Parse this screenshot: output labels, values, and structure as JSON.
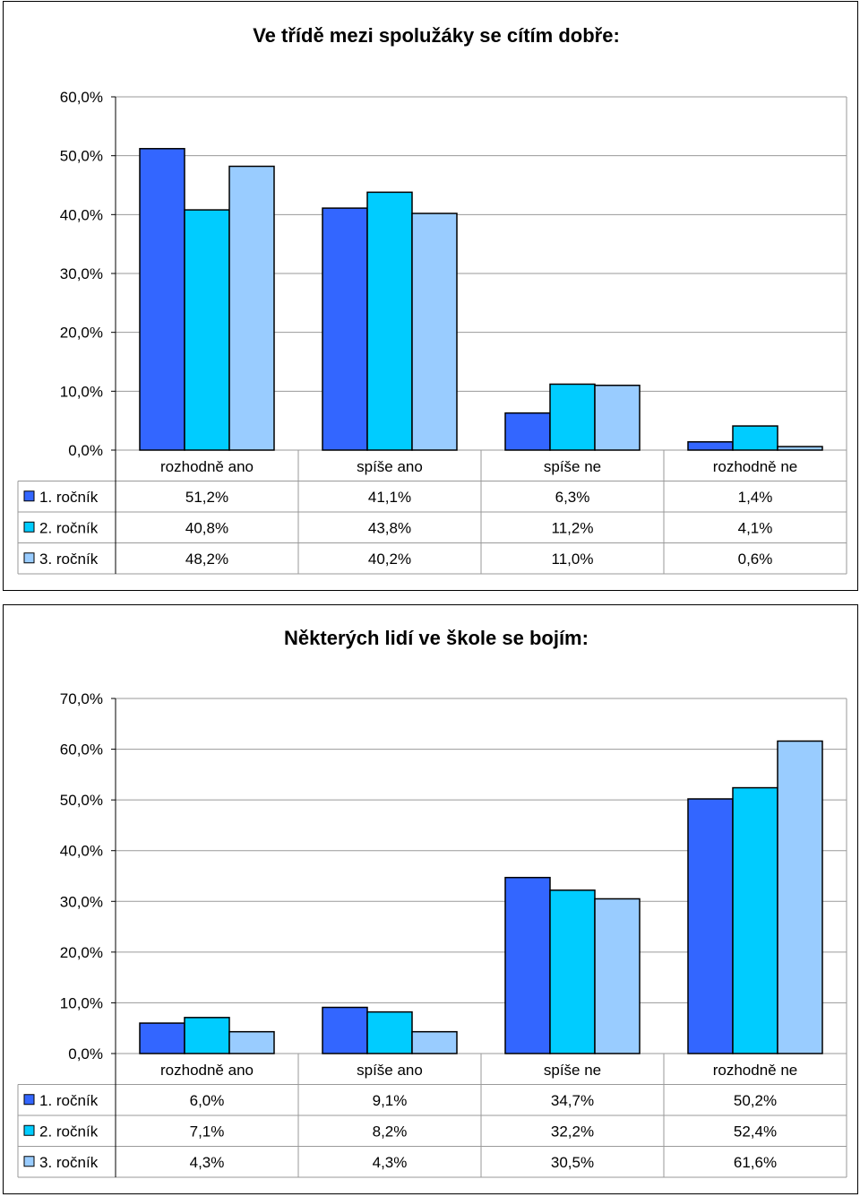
{
  "charts": [
    {
      "type": "bar",
      "title": "Ve třídě mezi spolužáky se cítím dobře:",
      "categories": [
        "rozhodně ano",
        "spíše ano",
        "spíše ne",
        "rozhodně ne"
      ],
      "series": [
        {
          "name": "1. ročník",
          "values": [
            51.2,
            41.1,
            6.3,
            1.4
          ],
          "labels": [
            "51,2%",
            "41,1%",
            "6,3%",
            "1,4%"
          ],
          "color": "#3366FF"
        },
        {
          "name": "2. ročník",
          "values": [
            40.8,
            43.8,
            11.2,
            4.1
          ],
          "labels": [
            "40,8%",
            "43,8%",
            "11,2%",
            "4,1%"
          ],
          "color": "#00CCFF"
        },
        {
          "name": "3. ročník",
          "values": [
            48.2,
            40.2,
            11.0,
            0.6
          ],
          "labels": [
            "48,2%",
            "40,2%",
            "11,0%",
            "0,6%"
          ],
          "color": "#99CCFF"
        }
      ],
      "ylim": [
        0,
        60
      ],
      "yticks": [
        "0,0%",
        "10,0%",
        "20,0%",
        "30,0%",
        "40,0%",
        "50,0%",
        "60,0%"
      ],
      "grid": true,
      "legend": "data-table"
    },
    {
      "type": "bar",
      "title": "Některých lidí ve škole se bojím:",
      "categories": [
        "rozhodně ano",
        "spíše ano",
        "spíše ne",
        "rozhodně ne"
      ],
      "series": [
        {
          "name": "1. ročník",
          "values": [
            6.0,
            9.1,
            34.7,
            50.2
          ],
          "labels": [
            "6,0%",
            "9,1%",
            "34,7%",
            "50,2%"
          ],
          "color": "#3366FF"
        },
        {
          "name": "2. ročník",
          "values": [
            7.1,
            8.2,
            32.2,
            52.4
          ],
          "labels": [
            "7,1%",
            "8,2%",
            "32,2%",
            "52,4%"
          ],
          "color": "#00CCFF"
        },
        {
          "name": "3. ročník",
          "values": [
            4.3,
            4.3,
            30.5,
            61.6
          ],
          "labels": [
            "4,3%",
            "4,3%",
            "30,5%",
            "61,6%"
          ],
          "color": "#99CCFF"
        }
      ],
      "ylim": [
        0,
        70
      ],
      "yticks": [
        "0,0%",
        "10,0%",
        "20,0%",
        "30,0%",
        "40,0%",
        "50,0%",
        "60,0%",
        "70,0%"
      ],
      "grid": true,
      "legend": "data-table"
    }
  ]
}
